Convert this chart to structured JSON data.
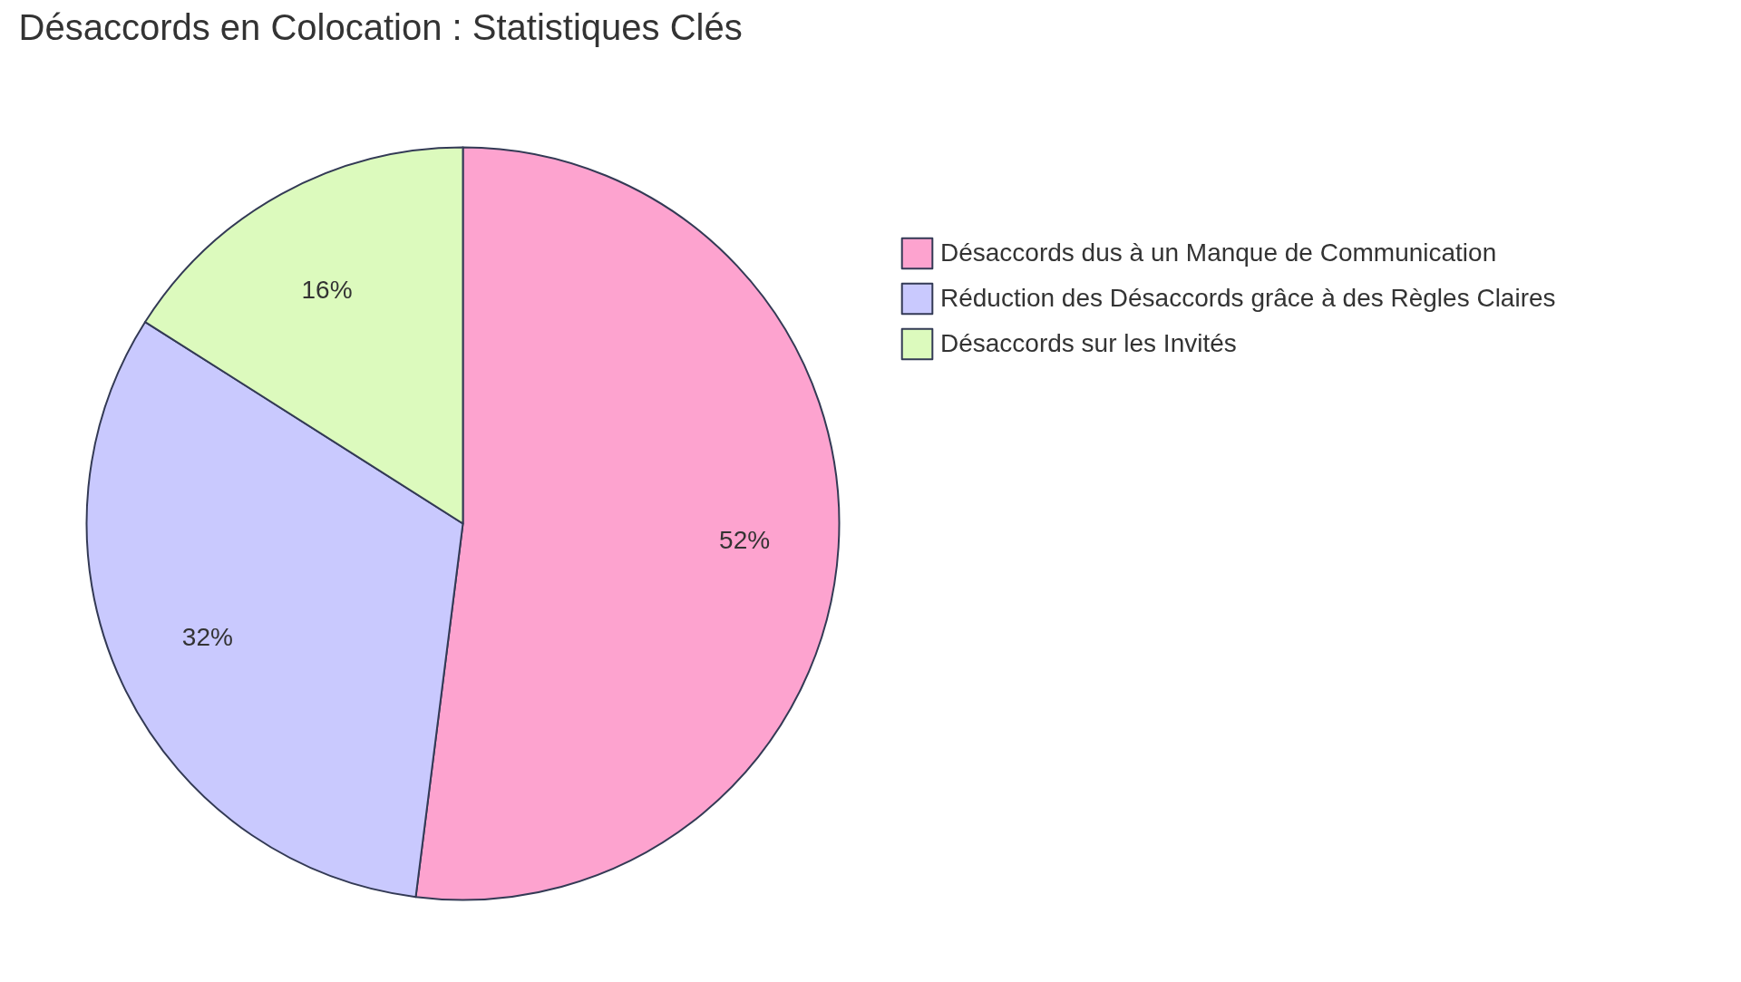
{
  "chart_data": {
    "type": "pie",
    "title": "Désaccords en Colocation : Statistiques Clés",
    "categories": [
      "Désaccords dus à un Manque de Communication",
      "Réduction des Désaccords grâce à des Règles Claires",
      "Désaccords sur les Invités"
    ],
    "values": [
      52,
      32,
      16
    ],
    "colors": [
      "#fda3cf",
      "#c9c9fe",
      "#dcfabd"
    ],
    "value_labels": [
      "52%",
      "32%",
      "16%"
    ],
    "legend": "right"
  }
}
